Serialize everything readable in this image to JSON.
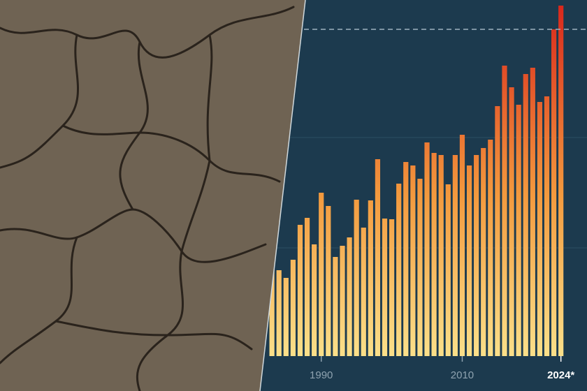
{
  "chart_data": {
    "type": "bar",
    "x": [
      1983,
      1984,
      1985,
      1986,
      1987,
      1988,
      1989,
      1990,
      1991,
      1992,
      1993,
      1994,
      1995,
      1996,
      1997,
      1998,
      1999,
      2000,
      2001,
      2002,
      2003,
      2004,
      2005,
      2006,
      2007,
      2008,
      2009,
      2010,
      2011,
      2012,
      2013,
      2014,
      2015,
      2016,
      2017,
      2018,
      2019,
      2020,
      2021,
      2022,
      2023,
      2024
    ],
    "values": [
      25,
      24.6,
      22.4,
      27.6,
      37.6,
      39.6,
      32,
      46.8,
      43,
      28.4,
      31.6,
      34,
      44.8,
      36.8,
      44.6,
      56.4,
      39.4,
      39.2,
      49.4,
      55.6,
      54.6,
      50.8,
      61.2,
      58.2,
      57.6,
      49.2,
      57.6,
      63.4,
      54.6,
      57.6,
      59.6,
      62,
      71.6,
      83.2,
      77,
      72,
      80.8,
      82.6,
      72.8,
      74.4,
      93.6,
      100.4
    ],
    "xlim": [
      1981.6,
      2027.7
    ],
    "xticks": [
      1990,
      2010,
      {
        "value": 2024,
        "label": "2024*"
      }
    ],
    "ylim": [
      0,
      102
    ],
    "gridlines": [
      31,
      62.6
    ],
    "record_line": 93.6,
    "colors": [
      "#fbe08a",
      "#f39a3e",
      "#d8241b"
    ]
  }
}
